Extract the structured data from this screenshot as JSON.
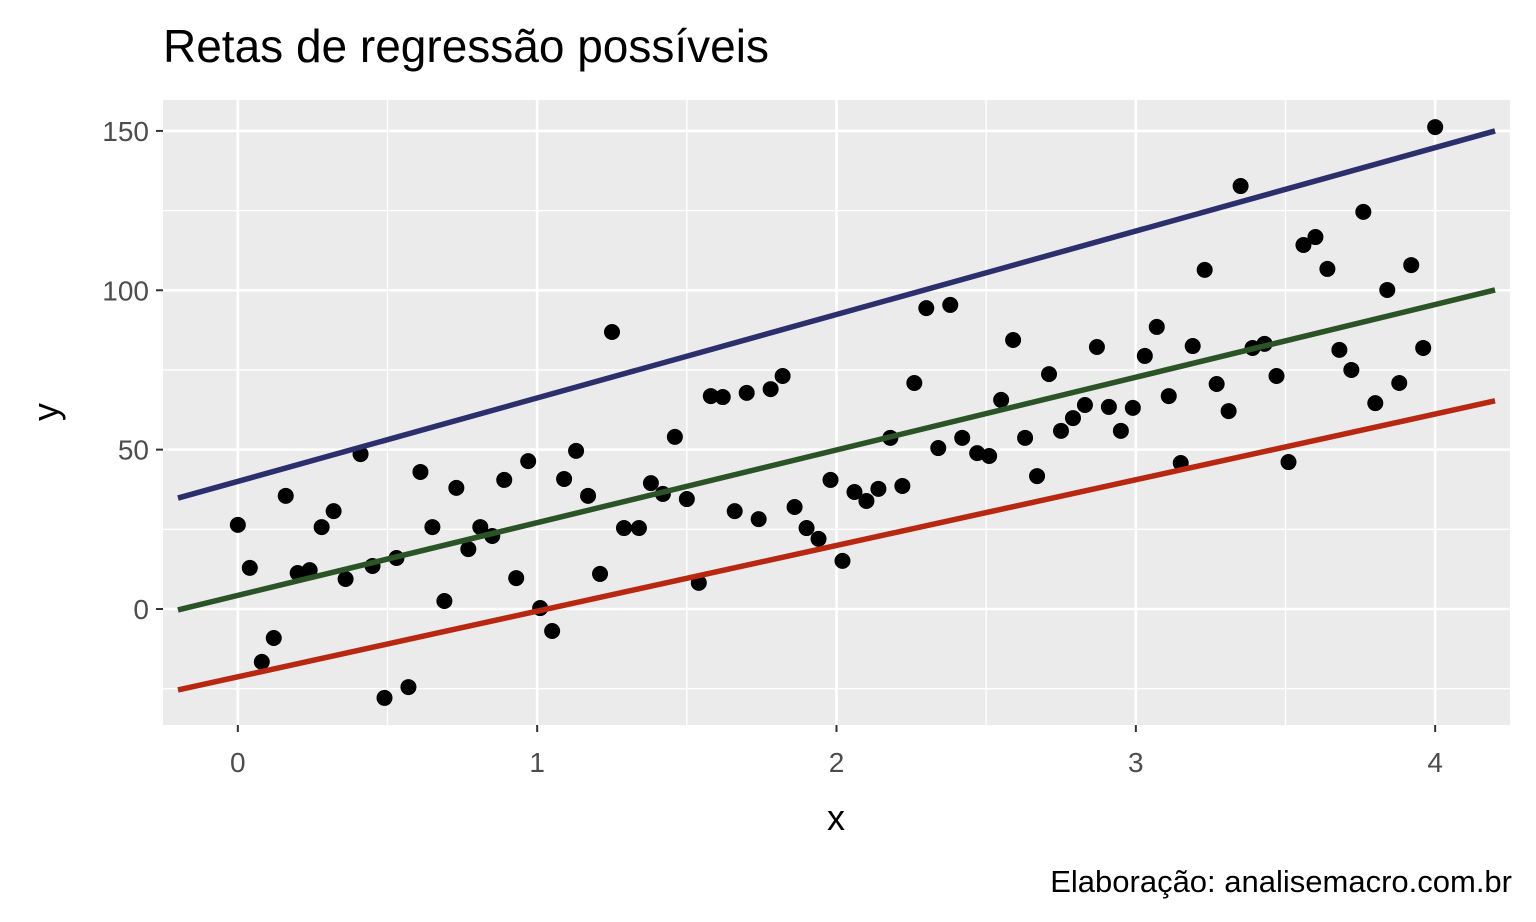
{
  "chart_data": {
    "type": "scatter",
    "title": "Retas de regressão possíveis",
    "x_label": "x",
    "y_label": "y",
    "caption": "Elaboração: analisemacro.com.br",
    "xlim": [
      -0.25,
      4.25
    ],
    "ylim": [
      -36.4,
      159.7
    ],
    "xticks": [
      0,
      1,
      2,
      3,
      4
    ],
    "yticks": [
      0,
      50,
      100,
      150
    ],
    "grid": true,
    "point_color": "#000000",
    "x": [
      0,
      0.04,
      0.08,
      0.12,
      0.16,
      0.2,
      0.24,
      0.28,
      0.32,
      0.36,
      0.41,
      0.45,
      0.49,
      0.53,
      0.57,
      0.61,
      0.65,
      0.69,
      0.73,
      0.77,
      0.81,
      0.85,
      0.89,
      0.93,
      0.97,
      1.01,
      1.05,
      1.09,
      1.13,
      1.17,
      1.21,
      1.25,
      1.29,
      1.34,
      1.38,
      1.42,
      1.46,
      1.5,
      1.54,
      1.58,
      1.62,
      1.66,
      1.7,
      1.74,
      1.78,
      1.82,
      1.86,
      1.9,
      1.94,
      1.98,
      2.02,
      2.06,
      2.1,
      2.14,
      2.18,
      2.22,
      2.26,
      2.3,
      2.34,
      2.38,
      2.42,
      2.47,
      2.51,
      2.55,
      2.59,
      2.63,
      2.67,
      2.71,
      2.75,
      2.79,
      2.83,
      2.87,
      2.91,
      2.95,
      2.99,
      3.03,
      3.07,
      3.11,
      3.15,
      3.19,
      3.23,
      3.27,
      3.31,
      3.35,
      3.39,
      3.43,
      3.47,
      3.51,
      3.56,
      3.6,
      3.64,
      3.68,
      3.72,
      3.76,
      3.8,
      3.84,
      3.88,
      3.92,
      3.96,
      4.0
    ],
    "values": [
      26.4,
      12.9,
      -16.6,
      -9.1,
      35.5,
      11.3,
      12.2,
      25.7,
      30.7,
      9.4,
      48.6,
      13.5,
      -27.9,
      16.0,
      -24.5,
      43.0,
      25.7,
      2.5,
      38.0,
      18.8,
      25.7,
      22.9,
      40.5,
      9.7,
      46.4,
      0.3,
      -6.9,
      40.8,
      49.6,
      35.5,
      11.0,
      86.9,
      25.4,
      25.4,
      39.5,
      36.1,
      54.0,
      34.5,
      8.2,
      66.8,
      66.5,
      30.7,
      67.8,
      28.2,
      69.0,
      73.1,
      32.0,
      25.4,
      22.0,
      40.5,
      15.1,
      36.7,
      33.9,
      37.7,
      53.7,
      38.6,
      70.9,
      94.4,
      50.5,
      95.4,
      53.7,
      48.9,
      48.0,
      65.6,
      84.4,
      53.7,
      41.7,
      73.7,
      55.9,
      59.9,
      64.0,
      82.2,
      63.4,
      55.9,
      63.1,
      79.4,
      88.5,
      66.8,
      45.8,
      82.5,
      106.4,
      70.6,
      62.1,
      132.7,
      81.9,
      83.2,
      73.1,
      46.1,
      114.2,
      116.7,
      106.7,
      81.3,
      75.0,
      124.6,
      64.6,
      100.1,
      70.9,
      107.9,
      81.9,
      151.2
    ],
    "lines": [
      {
        "color": "#2b2f6b",
        "x": [
          -0.2,
          4.2
        ],
        "values": [
          34.8,
          150
        ]
      },
      {
        "color": "#2a5425",
        "x": [
          -0.2,
          4.2
        ],
        "values": [
          -0.3,
          100.1
        ]
      },
      {
        "color": "#b8270f",
        "x": [
          -0.2,
          4.2
        ],
        "values": [
          -25.4,
          65.3
        ]
      }
    ]
  }
}
